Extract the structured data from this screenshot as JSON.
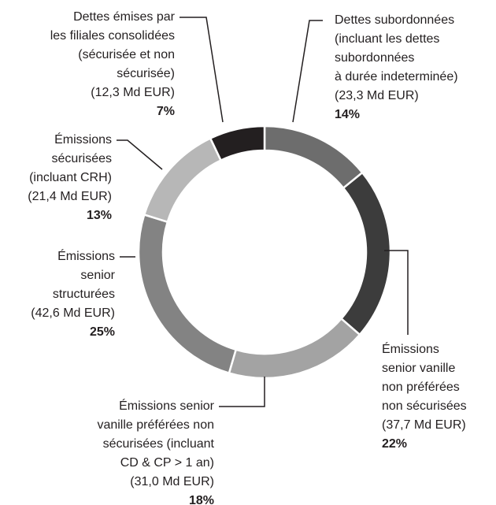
{
  "chart_data": {
    "type": "donut",
    "categories": [
      [
        "Dettes subordonnées",
        "(incluant les dettes",
        "subordonnées",
        "à durée indeterminée)",
        "(23,3 Md EUR)"
      ],
      [
        "Émissions",
        "senior vanille",
        "non préférées",
        "non sécurisées",
        "(37,7 Md EUR)"
      ],
      [
        "Émissions senior",
        "vanille préférées non",
        "sécurisées (incluant",
        "CD & CP > 1 an)",
        "(31,0 Md EUR)"
      ],
      [
        "Émissions",
        "senior",
        "structurées",
        "(42,6 Md EUR)"
      ],
      [
        "Émissions",
        "sécurisées",
        "(incluant CRH)",
        "(21,4 Md EUR)"
      ],
      [
        "Dettes émises par",
        "les filiales consolidées",
        "(sécurisée et non",
        "sécurisée)",
        "(12,3 Md EUR)"
      ]
    ],
    "values": [
      14,
      22,
      18,
      25,
      13,
      7
    ],
    "value_labels": [
      "14%",
      "22%",
      "18%",
      "25%",
      "13%",
      "7%"
    ],
    "colors": [
      "#6d6d6d",
      "#3c3c3c",
      "#a3a3a3",
      "#838383",
      "#b7b7b7",
      "#231f20"
    ]
  }
}
